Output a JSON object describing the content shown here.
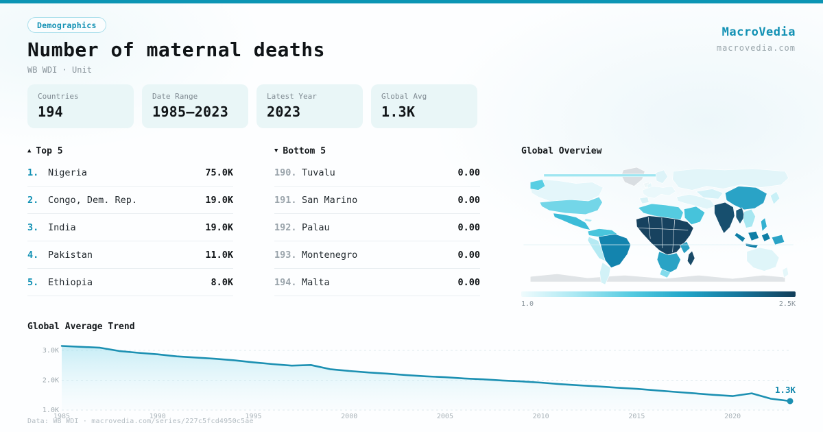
{
  "theme": {
    "accent": "#1291B4",
    "topbar": "#0C95B4",
    "card_bg": "#E9F6F7",
    "badge_border": "#ADE0EC",
    "line_color": "#1C90B2",
    "grid_color": "#DEE9ED"
  },
  "header": {
    "badge": "Demographics",
    "title": "Number of maternal deaths",
    "subtitle": "WB WDI · Unit",
    "brand": "MacroVedia",
    "domain": "macrovedia.com"
  },
  "stats": [
    {
      "label": "Countries",
      "value": "194"
    },
    {
      "label": "Date Range",
      "value": "1985—2023"
    },
    {
      "label": "Latest Year",
      "value": "2023"
    },
    {
      "label": "Global Avg",
      "value": "1.3K"
    }
  ],
  "top5": {
    "icon": "▲",
    "label": "Top 5",
    "items": [
      {
        "rank": "1.",
        "name": "Nigeria",
        "value": "75.0K"
      },
      {
        "rank": "2.",
        "name": "Congo, Dem. Rep.",
        "value": "19.0K"
      },
      {
        "rank": "3.",
        "name": "India",
        "value": "19.0K"
      },
      {
        "rank": "4.",
        "name": "Pakistan",
        "value": "11.0K"
      },
      {
        "rank": "5.",
        "name": "Ethiopia",
        "value": "8.0K"
      }
    ]
  },
  "bottom5": {
    "icon": "▼",
    "label": "Bottom 5",
    "items": [
      {
        "rank": "190.",
        "name": "Tuvalu",
        "value": "0.00"
      },
      {
        "rank": "191.",
        "name": "San Marino",
        "value": "0.00"
      },
      {
        "rank": "192.",
        "name": "Palau",
        "value": "0.00"
      },
      {
        "rank": "193.",
        "name": "Montenegro",
        "value": "0.00"
      },
      {
        "rank": "194.",
        "name": "Malta",
        "value": "0.00"
      }
    ]
  },
  "map": {
    "title": "Global Overview",
    "legend_min": "1.0",
    "legend_max": "2.5K",
    "scale_colors": [
      "#EFFBFD",
      "#A9E8F3",
      "#55CBE1",
      "#21A5C8",
      "#16759B",
      "#123E59"
    ]
  },
  "chart_data": {
    "type": "area",
    "title": "Global Average Trend",
    "x": [
      1985,
      1986,
      1987,
      1988,
      1989,
      1990,
      1991,
      1992,
      1993,
      1994,
      1995,
      1996,
      1997,
      1998,
      1999,
      2000,
      2001,
      2002,
      2003,
      2004,
      2005,
      2006,
      2007,
      2008,
      2009,
      2010,
      2011,
      2012,
      2013,
      2014,
      2015,
      2016,
      2017,
      2018,
      2019,
      2020,
      2021,
      2022,
      2023
    ],
    "values": [
      3150,
      3120,
      3090,
      2980,
      2920,
      2870,
      2800,
      2760,
      2720,
      2670,
      2600,
      2540,
      2490,
      2510,
      2370,
      2310,
      2260,
      2220,
      2170,
      2130,
      2100,
      2060,
      2030,
      1990,
      1960,
      1920,
      1870,
      1830,
      1790,
      1750,
      1710,
      1660,
      1610,
      1560,
      1510,
      1470,
      1560,
      1380,
      1300
    ],
    "xlabel": "",
    "ylabel": "",
    "ylim": [
      1000,
      3480
    ],
    "yticks": [
      {
        "v": 3000,
        "label": "3.0K"
      },
      {
        "v": 2000,
        "label": "2.0K"
      },
      {
        "v": 1000,
        "label": "1.0K"
      }
    ],
    "xticks": [
      1985,
      1990,
      1995,
      2000,
      2005,
      2010,
      2015,
      2020
    ],
    "end_label": "1.3K",
    "grid": true,
    "legend": false
  },
  "footer": {
    "text": "Data: WB WDI · macrovedia.com/series/227c5fcd4950c5ae"
  }
}
